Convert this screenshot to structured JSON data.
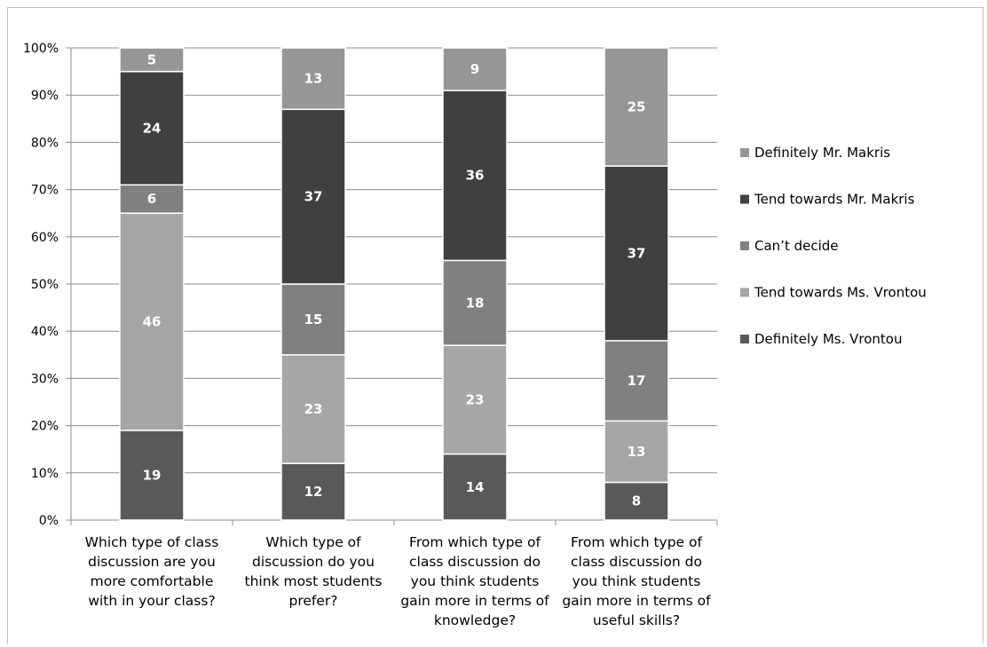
{
  "chart_data": {
    "type": "bar",
    "stacked": "percent",
    "categories": [
      "Which type of class discussion are you more comfortable with in your class?",
      "Which type of discussion do you think most students prefer?",
      "From which type of class discussion do you think students gain more in terms of knowledge?",
      "From which type of class discussion do you think students gain more in terms of useful skills?"
    ],
    "series": [
      {
        "name": "Definitely Ms. Vrontou",
        "color": "#595959",
        "values": [
          19,
          12,
          14,
          8
        ]
      },
      {
        "name": "Tend towards Ms. Vrontou",
        "color": "#a6a6a6",
        "values": [
          46,
          23,
          23,
          13
        ]
      },
      {
        "name": "Can’t decide",
        "color": "#808080",
        "values": [
          6,
          15,
          18,
          17
        ]
      },
      {
        "name": "Tend towards Mr. Makris",
        "color": "#404040",
        "values": [
          24,
          37,
          36,
          37
        ]
      },
      {
        "name": "Definitely Mr. Makris",
        "color": "#969696",
        "values": [
          5,
          13,
          9,
          25
        ]
      }
    ],
    "yticks": [
      "0%",
      "10%",
      "20%",
      "30%",
      "40%",
      "50%",
      "60%",
      "70%",
      "80%",
      "90%",
      "100%"
    ],
    "ylim": [
      0,
      100
    ],
    "grid": true,
    "legend": "right",
    "legend_order": [
      "Definitely Mr. Makris",
      "Tend towards Mr. Makris",
      "Can’t decide",
      "Tend towards Ms. Vrontou",
      "Definitely Ms. Vrontou"
    ]
  }
}
